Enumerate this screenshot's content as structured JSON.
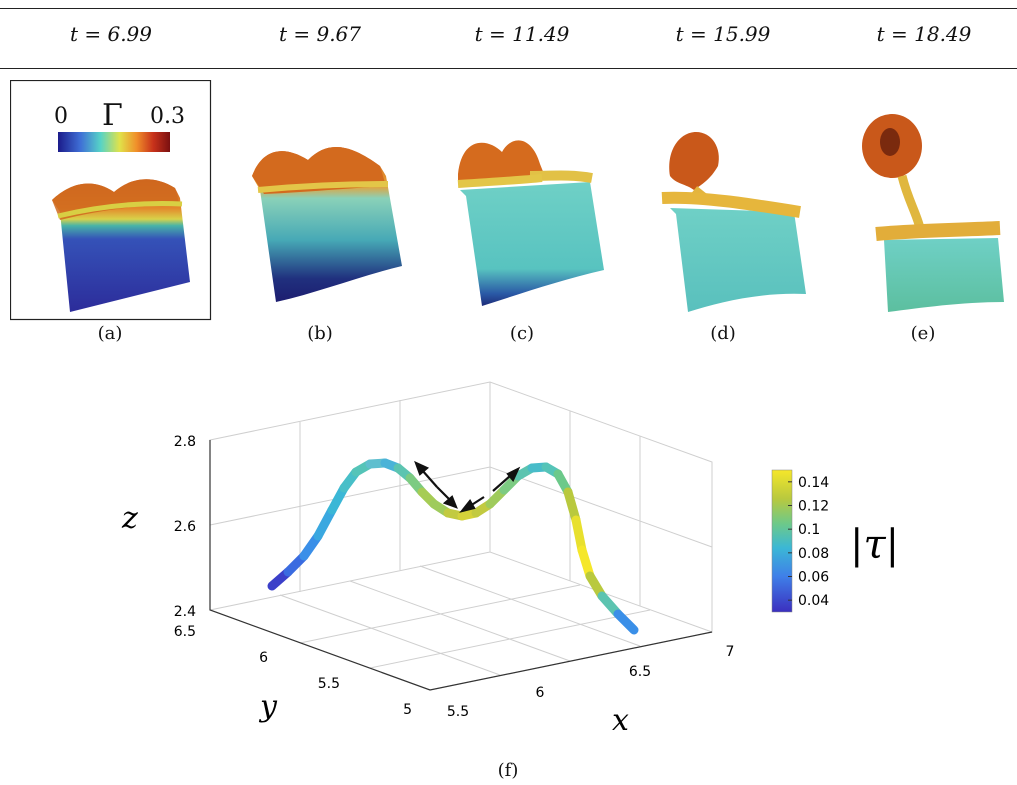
{
  "header": {
    "times": [
      {
        "t": "t = 6.99"
      },
      {
        "t": "t = 9.67"
      },
      {
        "t": "t = 11.49"
      },
      {
        "t": "t = 15.99"
      },
      {
        "t": "t = 18.49"
      }
    ]
  },
  "panels": [
    {
      "label": "(a)"
    },
    {
      "label": "(b)"
    },
    {
      "label": "(c)"
    },
    {
      "label": "(d)"
    },
    {
      "label": "(e)"
    }
  ],
  "gamma_colorbar": {
    "min_label": "0",
    "symbol": "Γ",
    "max_label": "0.3",
    "colors": [
      "#1b1b8a",
      "#3f6fd6",
      "#56d3c7",
      "#e0e24a",
      "#f0902a",
      "#c8321b",
      "#7a1010"
    ]
  },
  "surface_colors": {
    "deep_blue": "#2e2e9e",
    "cyan": "#6fd0c6",
    "yellow": "#e6c43a",
    "orange": "#d9701f",
    "dark_orange": "#b24a14"
  },
  "figure_f": {
    "label": "(f)",
    "z_label": "z",
    "y_label": "y",
    "x_label": "x",
    "colorbar_symbol": "|τ|",
    "z_ticks": [
      "2.8",
      "2.6",
      "2.4"
    ],
    "y_ticks": [
      "6.5",
      "6",
      "5.5",
      "5"
    ],
    "x_ticks": [
      "5.5",
      "6",
      "6.5",
      "7"
    ],
    "colorbar_ticks": [
      "0.14",
      "0.12",
      "0.1",
      "0.08",
      "0.06",
      "0.04"
    ],
    "colorbar_range": [
      0.03,
      0.15
    ],
    "colorbar_colors": [
      "#3b2fbf",
      "#3f7fe8",
      "#3bb7d6",
      "#6cc98a",
      "#b9c93e",
      "#f5e72a"
    ]
  }
}
